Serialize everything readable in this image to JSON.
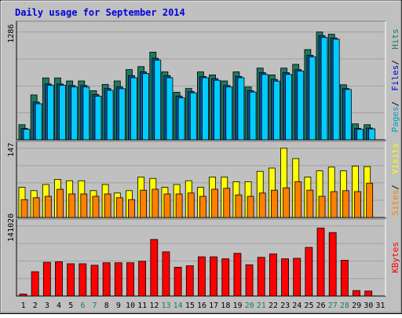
{
  "title": "Daily usage for September 2014",
  "colors": {
    "background": "#c0c0c0",
    "plot_bg": "#c0c0c0",
    "grid": "#a0a0a0",
    "title": "#0000d8",
    "hits": "#1e7a5e",
    "files": "#00ccff",
    "pages": "#00a0c0",
    "visits": "#ffff00",
    "sites": "#ff8000",
    "kbytes": "#ff0000",
    "weekend_label": "#1e7a5e",
    "weekday_label": "#000000"
  },
  "chart_data": [
    {
      "type": "bar",
      "panel": "hits-files-pages",
      "ytick_label": "1286",
      "ylim": [
        0,
        1286
      ],
      "legend": [
        {
          "name": "Pages",
          "color": "#00a0c0"
        },
        {
          "name": "Files",
          "color": "#0000d8"
        },
        {
          "name": "Hits",
          "color": "#1e7a5e"
        }
      ],
      "categories": [
        "1",
        "2",
        "3",
        "4",
        "5",
        "6",
        "7",
        "8",
        "9",
        "10",
        "11",
        "12",
        "13",
        "14",
        "15",
        "16",
        "17",
        "18",
        "19",
        "20",
        "21",
        "22",
        "23",
        "24",
        "25",
        "26",
        "27",
        "28",
        "29",
        "30",
        "31"
      ],
      "series": [
        {
          "name": "Hits",
          "values": [
            180,
            535,
            738,
            738,
            702,
            702,
            585,
            660,
            702,
            837,
            873,
            1045,
            810,
            567,
            612,
            810,
            774,
            702,
            810,
            630,
            855,
            774,
            855,
            900,
            1076,
            1286,
            1260,
            657,
            190,
            180,
            0
          ]
        },
        {
          "name": "Files",
          "values": [
            135,
            450,
            666,
            666,
            648,
            648,
            540,
            612,
            630,
            765,
            810,
            972,
            765,
            522,
            576,
            756,
            729,
            648,
            756,
            585,
            801,
            720,
            801,
            837,
            1008,
            1242,
            1215,
            612,
            135,
            140,
            0
          ]
        },
        {
          "name": "Pages",
          "values": [
            125,
            430,
            650,
            650,
            630,
            630,
            520,
            590,
            610,
            740,
            790,
            950,
            740,
            500,
            560,
            740,
            710,
            630,
            740,
            570,
            780,
            700,
            780,
            820,
            990,
            1220,
            1200,
            600,
            125,
            130,
            0
          ]
        }
      ]
    },
    {
      "type": "bar",
      "panel": "visits-sites",
      "ytick_label": "147",
      "ylim": [
        0,
        147
      ],
      "legend": [
        {
          "name": "Sites",
          "color": "#ff8000"
        },
        {
          "name": "Visits",
          "color": "#ffff00"
        }
      ],
      "categories": [
        "1",
        "2",
        "3",
        "4",
        "5",
        "6",
        "7",
        "8",
        "9",
        "10",
        "11",
        "12",
        "13",
        "14",
        "15",
        "16",
        "17",
        "18",
        "19",
        "20",
        "21",
        "22",
        "23",
        "24",
        "25",
        "26",
        "27",
        "28",
        "29",
        "30",
        "31"
      ],
      "series": [
        {
          "name": "Visits",
          "values": [
            64,
            57,
            70,
            81,
            78,
            78,
            57,
            70,
            52,
            57,
            86,
            83,
            64,
            70,
            78,
            64,
            86,
            86,
            76,
            76,
            98,
            105,
            147,
            125,
            86,
            99,
            107,
            99,
            109,
            108,
            0
          ]
        },
        {
          "name": "Sites",
          "values": [
            38,
            42,
            45,
            60,
            50,
            50,
            45,
            50,
            42,
            38,
            58,
            60,
            50,
            50,
            52,
            45,
            60,
            62,
            48,
            45,
            52,
            58,
            63,
            76,
            58,
            45,
            55,
            57,
            55,
            73,
            0
          ]
        }
      ]
    },
    {
      "type": "bar",
      "panel": "kbytes",
      "ytick_label": "141020",
      "ylim": [
        0,
        141020
      ],
      "legend": [
        {
          "name": "KBytes",
          "color": "#ff0000"
        }
      ],
      "categories": [
        "1",
        "2",
        "3",
        "4",
        "5",
        "6",
        "7",
        "8",
        "9",
        "10",
        "11",
        "12",
        "13",
        "14",
        "15",
        "16",
        "17",
        "18",
        "19",
        "20",
        "21",
        "22",
        "23",
        "24",
        "25",
        "26",
        "27",
        "28",
        "29",
        "30",
        "31"
      ],
      "series": [
        {
          "name": "KBytes",
          "values": [
            4000,
            49000,
            68000,
            69000,
            65000,
            65000,
            62000,
            67000,
            67000,
            67000,
            70000,
            114000,
            89000,
            58000,
            61000,
            79000,
            79000,
            75000,
            86000,
            63000,
            78000,
            85000,
            75000,
            76000,
            98000,
            137000,
            128000,
            72000,
            11000,
            10000,
            0
          ]
        }
      ]
    }
  ]
}
